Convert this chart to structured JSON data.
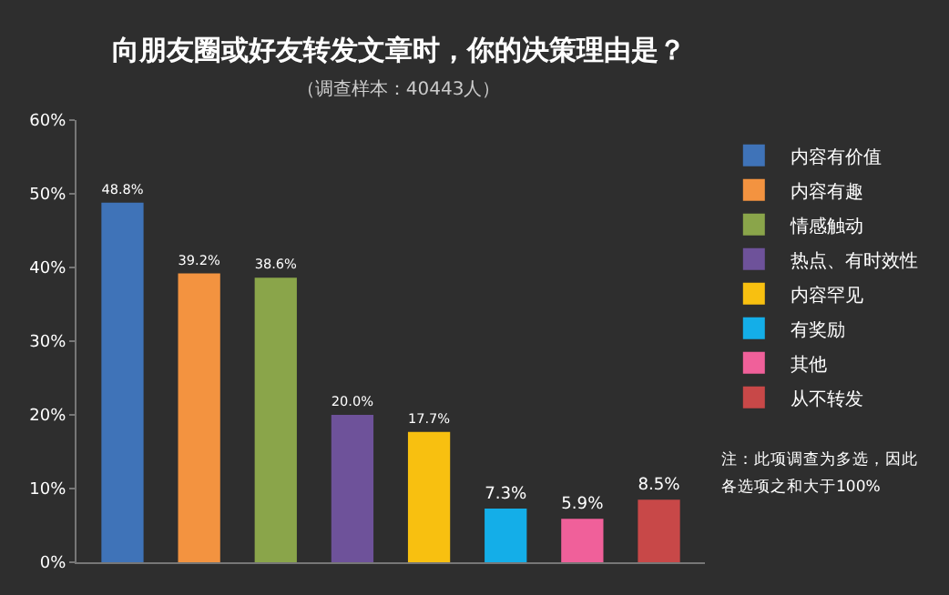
{
  "chart_data": {
    "type": "bar",
    "title": "向朋友圈或好友转发文章时，你的决策理由是？",
    "subtitle": "（调查样本：40443人）",
    "categories": [
      null,
      null,
      null,
      null,
      null,
      null,
      null,
      null
    ],
    "series": [
      {
        "name": "内容有价值",
        "color": "#3f73b8",
        "values": [
          48.8,
          null,
          null,
          null,
          null,
          null,
          null,
          null
        ],
        "value_labels": [
          "48.8%",
          null,
          null,
          null,
          null,
          null,
          null,
          null
        ]
      },
      {
        "name": "内容有趣",
        "color": "#f39340",
        "values": [
          null,
          39.2,
          null,
          null,
          null,
          null,
          null,
          null
        ],
        "value_labels": [
          null,
          "39.2%",
          null,
          null,
          null,
          null,
          null,
          null
        ]
      },
      {
        "name": "情感触动",
        "color": "#8aa54a",
        "values": [
          null,
          null,
          38.6,
          null,
          null,
          null,
          null,
          null
        ],
        "value_labels": [
          null,
          null,
          "38.6%",
          null,
          null,
          null,
          null,
          null
        ]
      },
      {
        "name": "热点、有时效性",
        "color": "#6e529a",
        "values": [
          null,
          null,
          null,
          20.0,
          null,
          null,
          null,
          null
        ],
        "value_labels": [
          null,
          null,
          null,
          "20.0%",
          null,
          null,
          null,
          null
        ]
      },
      {
        "name": "内容罕见",
        "color": "#f8c010",
        "values": [
          null,
          null,
          null,
          null,
          17.7,
          null,
          null,
          null
        ],
        "value_labels": [
          null,
          null,
          null,
          null,
          "17.7%",
          null,
          null,
          null
        ]
      },
      {
        "name": "有奖励",
        "color": "#14aee8",
        "values": [
          null,
          null,
          null,
          null,
          null,
          7.3,
          null,
          null
        ],
        "value_labels": [
          null,
          null,
          null,
          null,
          null,
          "7.3%",
          null,
          null
        ]
      },
      {
        "name": "其他",
        "color": "#f0609a",
        "values": [
          null,
          null,
          null,
          null,
          null,
          null,
          5.9,
          null
        ],
        "value_labels": [
          null,
          null,
          null,
          null,
          null,
          null,
          "5.9%",
          null
        ]
      },
      {
        "name": "从不转发",
        "color": "#c84848",
        "values": [
          null,
          null,
          null,
          null,
          null,
          null,
          null,
          8.5
        ],
        "value_labels": [
          null,
          null,
          null,
          null,
          null,
          null,
          null,
          "8.5%"
        ]
      }
    ],
    "ylim": [
      0,
      60
    ],
    "yticks": [
      {
        "value": 0,
        "label": "0%"
      },
      {
        "value": 10,
        "label": "10%"
      },
      {
        "value": 20,
        "label": "20%"
      },
      {
        "value": 30,
        "label": "30%"
      },
      {
        "value": 40,
        "label": "40%"
      },
      {
        "value": 50,
        "label": "50%"
      },
      {
        "value": 60,
        "label": "60%"
      }
    ],
    "grid": false,
    "legend": "right",
    "annotations": [
      "注：此项调查为多选，因此",
      "各选项之和大于100%"
    ]
  }
}
